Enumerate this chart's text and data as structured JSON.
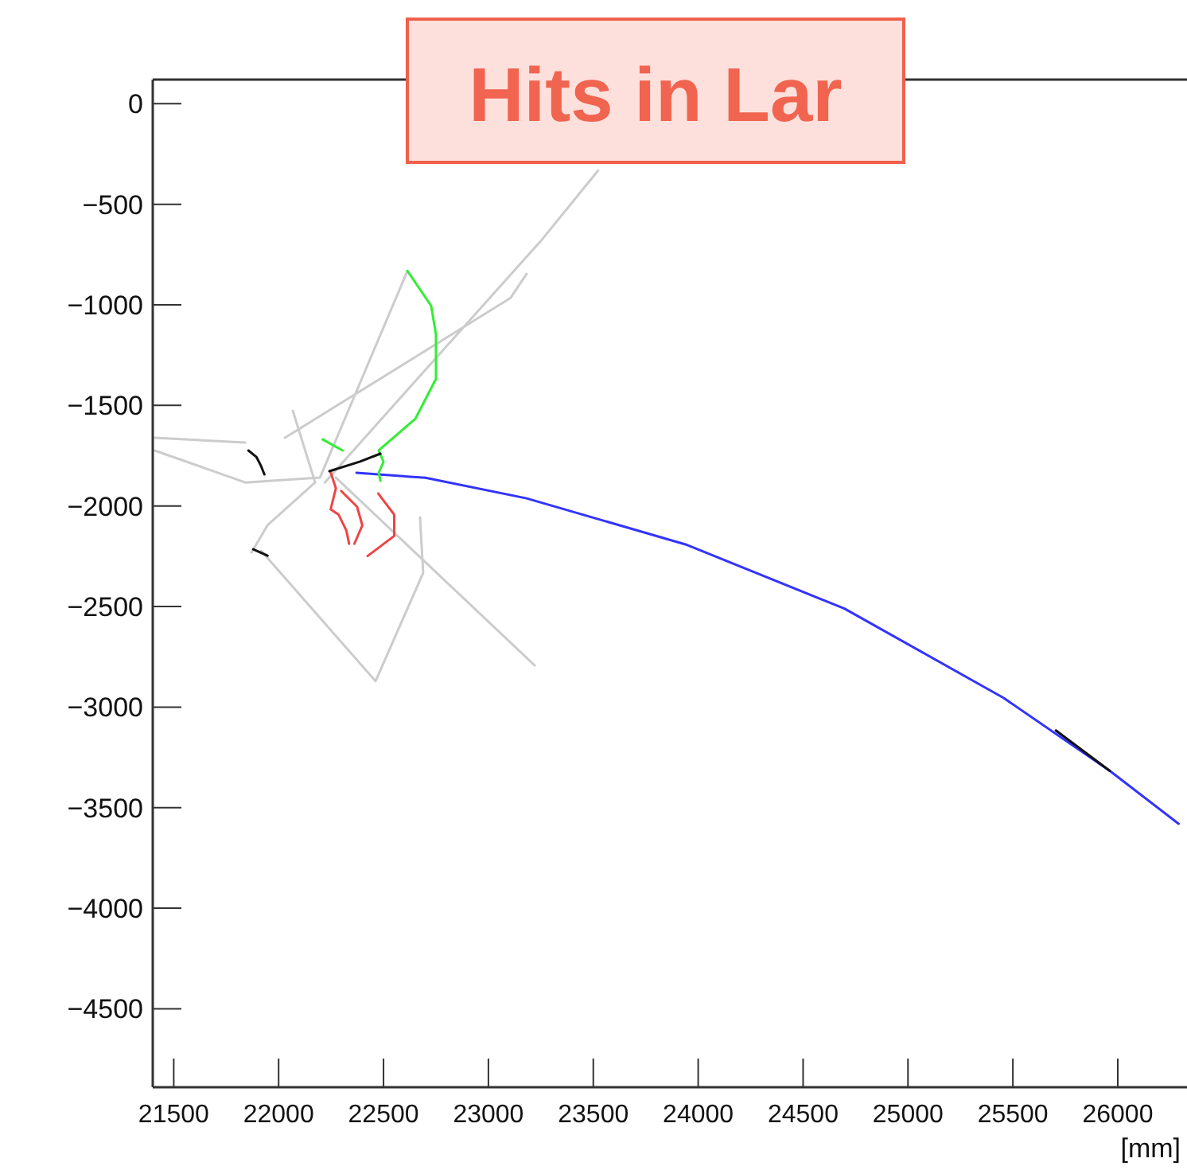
{
  "chart_data": {
    "type": "line",
    "title": "Hits in Lar",
    "xlabel": "[mm]",
    "xlim": [
      21400,
      26330
    ],
    "ylim": [
      -4890,
      120
    ],
    "xticks": [
      21500,
      22000,
      22500,
      23000,
      23500,
      24000,
      24500,
      25000,
      25500,
      26000
    ],
    "yticks": [
      0,
      -500,
      -1000,
      -1500,
      -2000,
      -2500,
      -3000,
      -3500,
      -4000,
      -4500
    ],
    "grid": false,
    "marker": "none",
    "line_style": "solid",
    "series": [
      {
        "color": "#cccccc",
        "x": [
          22220,
          23258,
          23523,
          null,
          22030,
          23106,
          23182,
          null,
          22614,
          22197,
          null,
          21409,
          21841,
          null,
          21409,
          21841,
          22197,
          null,
          21917,
          22462,
          22689,
          22674,
          null,
          22273,
          23220,
          null,
          22174,
          21947,
          21871,
          null,
          22068,
          22174
        ],
        "values": [
          -1883,
          -672,
          -332,
          null,
          -1661,
          -965,
          -846,
          null,
          -831,
          -1859,
          null,
          -1661,
          -1685,
          null,
          -1724,
          -1883,
          -1859,
          null,
          -2223,
          -2871,
          -2333,
          -2057,
          null,
          -1859,
          -2792,
          null,
          -1883,
          -2096,
          -2231,
          null,
          -1527,
          -1883
        ]
      },
      {
        "color": "#3333ff",
        "x": [
          22371,
          22700,
          23182,
          23939,
          24697,
          25455,
          25962,
          26290
        ],
        "values": [
          -1835,
          -1860,
          -1962,
          -2191,
          -2510,
          -2954,
          -3317,
          -3580
        ]
      },
      {
        "color": "#33ee33",
        "x": [
          22614,
          22727,
          22750,
          22750,
          22652,
          22477,
          22500,
          22477,
          22485,
          null,
          22210,
          22305
        ],
        "values": [
          -831,
          -1005,
          -1147,
          -1368,
          -1566,
          -1724,
          -1780,
          -1835,
          -1875,
          null,
          -1669,
          -1724
        ]
      },
      {
        "color": "#ee4444",
        "x": [
          22248,
          22273,
          22248,
          22286,
          22323,
          22336,
          null,
          22298,
          22374,
          22399,
          22361,
          null,
          22424,
          22551,
          22551,
          22475
        ],
        "values": [
          -1833,
          -1912,
          -2017,
          -2043,
          -2122,
          -2188,
          null,
          -1925,
          -2004,
          -2096,
          -2188,
          null,
          -2249,
          -2149,
          -2043,
          -1938
        ]
      },
      {
        "color": "#111111",
        "x": [
          22242,
          22386,
          22485,
          null,
          21856,
          21894,
          21917,
          21932,
          null,
          21879,
          21947,
          null,
          25705,
          25962
        ],
        "values": [
          -1827,
          -1780,
          -1740,
          null,
          -1724,
          -1756,
          -1803,
          -1843,
          null,
          -2215,
          -2247,
          null,
          -3116,
          -3317
        ]
      }
    ]
  }
}
